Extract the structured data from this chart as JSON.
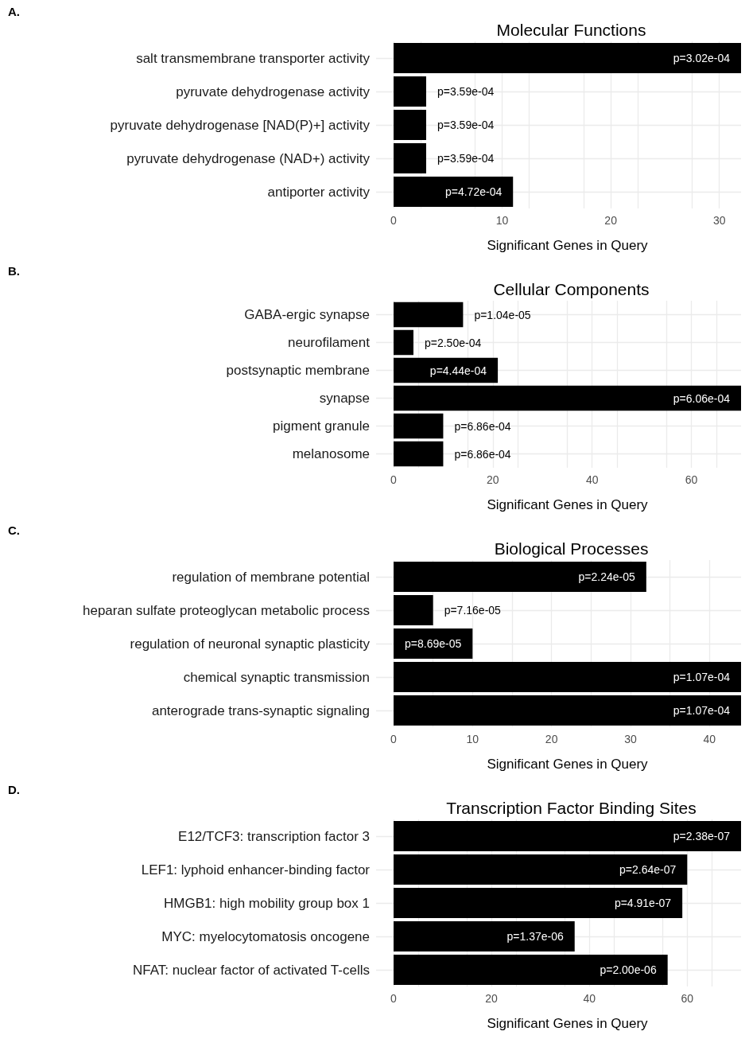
{
  "chart_data": [
    {
      "type": "bar",
      "orientation": "horizontal",
      "annotations": [
        "A."
      ],
      "title": "Molecular Functions",
      "xlabel": "Significant Genes in Query",
      "categories": [
        "salt transmembrane transporter activity",
        "pyruvate dehydrogenase activity",
        "pyruvate dehydrogenase [NAD(P)+] activity",
        "pyruvate dehydrogenase (NAD+) activity",
        "antiporter activity"
      ],
      "values": [
        32,
        3,
        3,
        3,
        11
      ],
      "color": "#000000",
      "value_labels": [
        "p=3.02e-04",
        "p=3.59e-04",
        "p=3.59e-04",
        "p=3.59e-04",
        "p=4.72e-04"
      ],
      "xlim": [
        0,
        32
      ],
      "xticks": [
        0,
        10,
        20,
        30
      ],
      "grid": true
    },
    {
      "type": "bar",
      "orientation": "horizontal",
      "annotations": [
        "B."
      ],
      "title": "Cellular Components",
      "xlabel": "Significant Genes in Query",
      "categories": [
        "GABA-ergic synapse",
        "neurofilament",
        "postsynaptic membrane",
        "synapse",
        "pigment granule",
        "melanosome"
      ],
      "values": [
        14,
        4,
        21,
        70,
        10,
        10
      ],
      "color": "#000000",
      "value_labels": [
        "p=1.04e-05",
        "p=2.50e-04",
        "p=4.44e-04",
        "p=6.06e-04",
        "p=6.86e-04",
        "p=6.86e-04"
      ],
      "xlim": [
        0,
        70
      ],
      "xticks": [
        0,
        20,
        40,
        60
      ],
      "grid": true
    },
    {
      "type": "bar",
      "orientation": "horizontal",
      "annotations": [
        "C."
      ],
      "title": "Biological Processes",
      "xlabel": "Significant Genes in Query",
      "categories": [
        "regulation of membrane potential",
        "heparan sulfate proteoglycan metabolic process",
        "regulation of neuronal synaptic plasticity",
        "chemical synaptic transmission",
        "anterograde trans-synaptic signaling"
      ],
      "values": [
        32,
        5,
        10,
        44,
        44
      ],
      "color": "#000000",
      "value_labels": [
        "p=2.24e-05",
        "p=7.16e-05",
        "p=8.69e-05",
        "p=1.07e-04",
        "p=1.07e-04"
      ],
      "xlim": [
        0,
        44
      ],
      "xticks": [
        0,
        10,
        20,
        30,
        40
      ],
      "grid": true
    },
    {
      "type": "bar",
      "orientation": "horizontal",
      "annotations": [
        "D."
      ],
      "title": "Transcription Factor Binding Sites",
      "xlabel": "Significant Genes in Query",
      "categories": [
        "E12/TCF3: transcription factor 3",
        "LEF1: lyphoid enhancer-binding factor",
        "HMGB1: high mobility group box 1",
        "MYC: myelocytomatosis oncogene",
        "NFAT: nuclear factor of activated T-cells"
      ],
      "values": [
        71,
        60,
        59,
        37,
        56
      ],
      "color": "#000000",
      "value_labels": [
        "p=2.38e-07",
        "p=2.64e-07",
        "p=4.91e-07",
        "p=1.37e-06",
        "p=2.00e-06"
      ],
      "xlim": [
        0,
        71
      ],
      "xticks": [
        0,
        20,
        40,
        60
      ],
      "grid": true
    }
  ]
}
